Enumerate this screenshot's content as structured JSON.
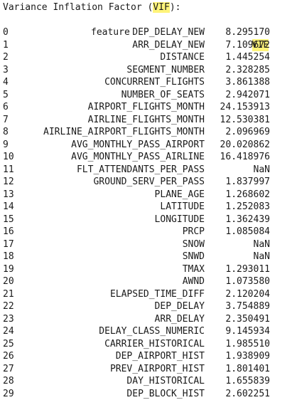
{
  "output": {
    "title_prefix": "Variance Inflation Factor (",
    "title_highlight": "VIF",
    "title_suffix": "):",
    "header_feature": "feature",
    "header_vif": "VIF",
    "highlight_color": "#fff47a",
    "rows": [
      {
        "index": "0",
        "feature": "DEP_DELAY_NEW",
        "vif": "8.295170"
      },
      {
        "index": "1",
        "feature": "ARR_DELAY_NEW",
        "vif": "7.109672"
      },
      {
        "index": "2",
        "feature": "DISTANCE",
        "vif": "1.445254"
      },
      {
        "index": "3",
        "feature": "SEGMENT_NUMBER",
        "vif": "2.328285"
      },
      {
        "index": "4",
        "feature": "CONCURRENT_FLIGHTS",
        "vif": "3.861388"
      },
      {
        "index": "5",
        "feature": "NUMBER_OF_SEATS",
        "vif": "2.942071"
      },
      {
        "index": "6",
        "feature": "AIRPORT_FLIGHTS_MONTH",
        "vif": "24.153913"
      },
      {
        "index": "7",
        "feature": "AIRLINE_FLIGHTS_MONTH",
        "vif": "12.530381"
      },
      {
        "index": "8",
        "feature": "AIRLINE_AIRPORT_FLIGHTS_MONTH",
        "vif": "2.096969"
      },
      {
        "index": "9",
        "feature": "AVG_MONTHLY_PASS_AIRPORT",
        "vif": "20.020862"
      },
      {
        "index": "10",
        "feature": "AVG_MONTHLY_PASS_AIRLINE",
        "vif": "16.418976"
      },
      {
        "index": "11",
        "feature": "FLT_ATTENDANTS_PER_PASS",
        "vif": "NaN"
      },
      {
        "index": "12",
        "feature": "GROUND_SERV_PER_PASS",
        "vif": "1.837997"
      },
      {
        "index": "13",
        "feature": "PLANE_AGE",
        "vif": "1.268602"
      },
      {
        "index": "14",
        "feature": "LATITUDE",
        "vif": "1.252083"
      },
      {
        "index": "15",
        "feature": "LONGITUDE",
        "vif": "1.362439"
      },
      {
        "index": "16",
        "feature": "PRCP",
        "vif": "1.085084"
      },
      {
        "index": "17",
        "feature": "SNOW",
        "vif": "NaN"
      },
      {
        "index": "18",
        "feature": "SNWD",
        "vif": "NaN"
      },
      {
        "index": "19",
        "feature": "TMAX",
        "vif": "1.293011"
      },
      {
        "index": "20",
        "feature": "AWND",
        "vif": "1.073580"
      },
      {
        "index": "21",
        "feature": "ELAPSED_TIME_DIFF",
        "vif": "2.120204"
      },
      {
        "index": "22",
        "feature": "DEP_DELAY",
        "vif": "3.754889"
      },
      {
        "index": "23",
        "feature": "ARR_DELAY",
        "vif": "2.350491"
      },
      {
        "index": "24",
        "feature": "DELAY_CLASS_NUMERIC",
        "vif": "9.145934"
      },
      {
        "index": "25",
        "feature": "CARRIER_HISTORICAL",
        "vif": "1.985510"
      },
      {
        "index": "26",
        "feature": "DEP_AIRPORT_HIST",
        "vif": "1.938909"
      },
      {
        "index": "27",
        "feature": "PREV_AIRPORT_HIST",
        "vif": "1.801401"
      },
      {
        "index": "28",
        "feature": "DAY_HISTORICAL",
        "vif": "1.655839"
      },
      {
        "index": "29",
        "feature": "DEP_BLOCK_HIST",
        "vif": "2.602251"
      }
    ]
  }
}
